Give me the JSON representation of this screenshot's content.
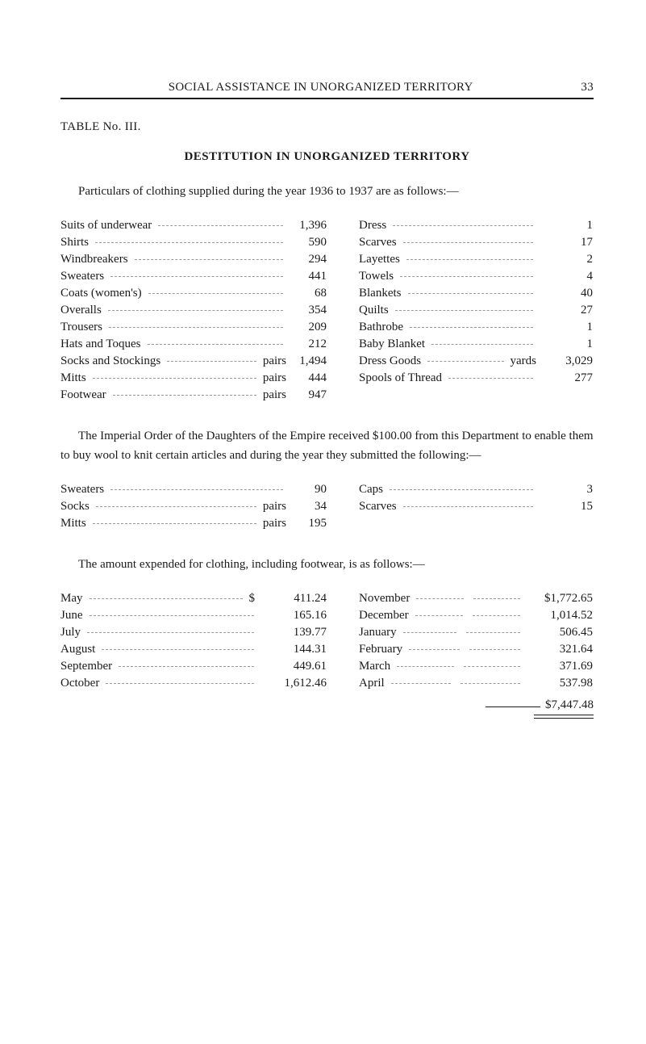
{
  "running_head": {
    "title": "SOCIAL ASSISTANCE IN UNORGANIZED TERRITORY",
    "page": "33"
  },
  "table_no": "TABLE No. III.",
  "section_title": "DESTITUTION IN UNORGANIZED TERRITORY",
  "intro": "Particulars of clothing supplied during the year 1936 to 1937 are as follows:—",
  "clothing_left": [
    {
      "label": "Suits of underwear",
      "unit": "",
      "value": "1,396"
    },
    {
      "label": "Shirts",
      "unit": "",
      "value": "590"
    },
    {
      "label": "Windbreakers",
      "unit": "",
      "value": "294"
    },
    {
      "label": "Sweaters",
      "unit": "",
      "value": "441"
    },
    {
      "label": "Coats (women's)",
      "unit": "",
      "value": "68"
    },
    {
      "label": "Overalls",
      "unit": "",
      "value": "354"
    },
    {
      "label": "Trousers",
      "unit": "",
      "value": "209"
    },
    {
      "label": "Hats and Toques",
      "unit": "",
      "value": "212"
    },
    {
      "label": "Socks and Stockings",
      "unit": "pairs",
      "value": "1,494"
    },
    {
      "label": "Mitts",
      "unit": "pairs",
      "value": "444"
    },
    {
      "label": "Footwear",
      "unit": "pairs",
      "value": "947"
    }
  ],
  "clothing_right": [
    {
      "label": "Dress",
      "unit": "",
      "value": "1"
    },
    {
      "label": "Scarves",
      "unit": "",
      "value": "17"
    },
    {
      "label": "Layettes",
      "unit": "",
      "value": "2"
    },
    {
      "label": "Towels",
      "unit": "",
      "value": "4"
    },
    {
      "label": "Blankets",
      "unit": "",
      "value": "40"
    },
    {
      "label": "Quilts",
      "unit": "",
      "value": "27"
    },
    {
      "label": "Bathrobe",
      "unit": "",
      "value": "1"
    },
    {
      "label": "Baby Blanket",
      "unit": "",
      "value": "1"
    },
    {
      "label": "Dress Goods",
      "unit": "yards",
      "value": "3,029"
    },
    {
      "label": "Spools of Thread",
      "unit": "",
      "value": "277"
    }
  ],
  "imperial_para": "The Imperial Order of the Daughters of the Empire received $100.00 from this Department to enable them to buy wool to knit certain articles and during the year they submitted the following:—",
  "knit_left": [
    {
      "label": "Sweaters",
      "unit": "",
      "value": "90"
    },
    {
      "label": "Socks",
      "unit": "pairs",
      "value": "34"
    },
    {
      "label": "Mitts",
      "unit": "pairs",
      "value": "195"
    }
  ],
  "knit_right": [
    {
      "label": "Caps",
      "unit": "",
      "value": "3"
    },
    {
      "label": "Scarves",
      "unit": "",
      "value": "15"
    }
  ],
  "expend_intro": "The amount expended for clothing, including footwear, is as follows:—",
  "expend_left": [
    {
      "label": "May",
      "currency": "$",
      "value": "411.24"
    },
    {
      "label": "June",
      "currency": "",
      "value": "165.16"
    },
    {
      "label": "July",
      "currency": "",
      "value": "139.77"
    },
    {
      "label": "August",
      "currency": "",
      "value": "144.31"
    },
    {
      "label": "September",
      "currency": "",
      "value": "449.61"
    },
    {
      "label": "October",
      "currency": "",
      "value": "1,612.46"
    }
  ],
  "expend_right": [
    {
      "label": "November",
      "value": "$1,772.65"
    },
    {
      "label": "December",
      "value": "1,014.52"
    },
    {
      "label": "January",
      "value": "506.45"
    },
    {
      "label": "February",
      "value": "321.64"
    },
    {
      "label": "March",
      "value": "371.69"
    },
    {
      "label": "April",
      "value": "537.98"
    }
  ],
  "grand_total": "$7,447.48",
  "colors": {
    "text": "#1a1a1a",
    "leader": "#9a9a9a",
    "background": "#ffffff"
  },
  "typography": {
    "body_pt": 11,
    "title_pt": 11,
    "family": "Century Schoolbook / serif"
  }
}
